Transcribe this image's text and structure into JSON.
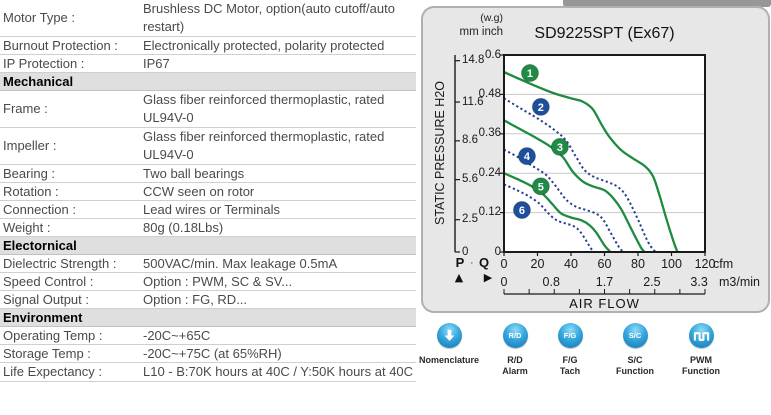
{
  "spec_table": {
    "rows": [
      {
        "type": "row",
        "label": "Motor Type :",
        "value": "Brushless DC Motor, option(auto cutoff/auto restart)",
        "tall": true
      },
      {
        "type": "row",
        "label": "Burnout Protection :",
        "value": "Electronically protected, polarity protected"
      },
      {
        "type": "row",
        "label": "IP Protection :",
        "value": "IP67"
      },
      {
        "type": "header",
        "label": "Mechanical"
      },
      {
        "type": "row",
        "label": "Frame :",
        "value": "Glass fiber reinforced thermoplastic, rated UL94V-0",
        "tall": true
      },
      {
        "type": "row",
        "label": "Impeller :",
        "value": "Glass fiber reinforced thermoplastic, rated UL94V-0",
        "tall": true
      },
      {
        "type": "row",
        "label": "Bearing :",
        "value": "Two ball bearings"
      },
      {
        "type": "row",
        "label": "Rotation :",
        "value": "CCW seen on rotor"
      },
      {
        "type": "row",
        "label": "Connection :",
        "value": "Lead wires or Terminals"
      },
      {
        "type": "row",
        "label": "Weight :",
        "value": "80g (0.18Lbs)"
      },
      {
        "type": "header",
        "label": "Electornical"
      },
      {
        "type": "row",
        "label": "Dielectric Strength :",
        "value": "500VAC/min. Max leakage 0.5mA"
      },
      {
        "type": "row",
        "label": "Speed Control :",
        "value": "Option : PWM, SC & SV..."
      },
      {
        "type": "row",
        "label": "Signal Output :",
        "value": "Option : FG, RD..."
      },
      {
        "type": "header",
        "label": "Environment"
      },
      {
        "type": "row",
        "label": "Operating Temp :",
        "value": "-20C~+65C"
      },
      {
        "type": "row",
        "label": "Storage Temp :",
        "value": "-20C~+75C (at 65%RH)"
      },
      {
        "type": "row",
        "label": "Life Expectancy :",
        "value": "L10 - B:70K hours at 40C / Y:50K hours at 40C",
        "tall": true
      }
    ]
  },
  "chart": {
    "title": "SD9225SPT (Ex67)",
    "pressure_unit_note": "(w.g)",
    "y_scale_header": "mm inch",
    "y_axis_label": "STATIC PRESSURE H2O",
    "x_axis_label": "AIR FLOW",
    "x_unit_primary": "cfm",
    "x_unit_secondary": "m3/min",
    "p_marker": "P",
    "q_marker": "Q",
    "p_arrow": "▲",
    "q_arrow": "▶",
    "pq_separator": "·"
  },
  "chart_data": {
    "type": "line",
    "title": "SD9225SPT (Ex67)",
    "xlabel": "AIR FLOW",
    "ylabel": "STATIC PRESSURE H2O",
    "x_units": [
      "cfm",
      "m3/min"
    ],
    "y_units": [
      "inch H2O",
      "mm H2O"
    ],
    "xlim_cfm": [
      0,
      120
    ],
    "ylim_inch": [
      0,
      0.6
    ],
    "x_ticks_cfm": [
      0,
      20,
      40,
      60,
      80,
      100,
      120
    ],
    "x_ticks_m3min": {
      "values": [
        0,
        0.8,
        1.7,
        2.5,
        3.3
      ],
      "positions_cfm": [
        0,
        28.2,
        60,
        88.3,
        116.5
      ]
    },
    "y_ticks_inch": [
      0,
      0.12,
      0.24,
      0.36,
      0.48,
      0.6
    ],
    "y_ticks_mm": [
      0,
      2.5,
      5.6,
      8.6,
      11.6,
      14.8
    ],
    "grid": "horizontal",
    "legend": "numbered badges on curves",
    "series": [
      {
        "name": "1",
        "color": "green",
        "line": "solid",
        "badge_cfm": 15.5,
        "badge_inch": 0.545,
        "points": [
          [
            0,
            0.548
          ],
          [
            10,
            0.525
          ],
          [
            20,
            0.503
          ],
          [
            30,
            0.483
          ],
          [
            40,
            0.468
          ],
          [
            47,
            0.458
          ],
          [
            53,
            0.435
          ],
          [
            58,
            0.39
          ],
          [
            63,
            0.35
          ],
          [
            70,
            0.31
          ],
          [
            77,
            0.285
          ],
          [
            84,
            0.262
          ],
          [
            89,
            0.23
          ],
          [
            93,
            0.17
          ],
          [
            97,
            0.1
          ],
          [
            101,
            0.035
          ],
          [
            103.5,
            0
          ]
        ]
      },
      {
        "name": "2",
        "color": "blue",
        "line": "dotted",
        "badge_cfm": 22,
        "badge_inch": 0.442,
        "points": [
          [
            0,
            0.468
          ],
          [
            10,
            0.437
          ],
          [
            20,
            0.407
          ],
          [
            30,
            0.372
          ],
          [
            37,
            0.34
          ],
          [
            43,
            0.29
          ],
          [
            48,
            0.25
          ],
          [
            54,
            0.228
          ],
          [
            62,
            0.213
          ],
          [
            68,
            0.198
          ],
          [
            73,
            0.17
          ],
          [
            79,
            0.11
          ],
          [
            86,
            0.03
          ],
          [
            90.5,
            0
          ]
        ]
      },
      {
        "name": "3",
        "color": "green",
        "line": "solid",
        "badge_cfm": 33.4,
        "badge_inch": 0.32,
        "points": [
          [
            0,
            0.401
          ],
          [
            10,
            0.373
          ],
          [
            20,
            0.345
          ],
          [
            28,
            0.32
          ],
          [
            35,
            0.29
          ],
          [
            41,
            0.245
          ],
          [
            47,
            0.215
          ],
          [
            53,
            0.2
          ],
          [
            60,
            0.188
          ],
          [
            65,
            0.165
          ],
          [
            70,
            0.13
          ],
          [
            77,
            0.06
          ],
          [
            82,
            0.012
          ],
          [
            84,
            0
          ]
        ]
      },
      {
        "name": "4",
        "color": "blue",
        "line": "dotted",
        "badge_cfm": 13.7,
        "badge_inch": 0.292,
        "points": [
          [
            0,
            0.312
          ],
          [
            8,
            0.29
          ],
          [
            17,
            0.262
          ],
          [
            25,
            0.235
          ],
          [
            31,
            0.2
          ],
          [
            37,
            0.16
          ],
          [
            43,
            0.138
          ],
          [
            49,
            0.128
          ],
          [
            55,
            0.117
          ],
          [
            59,
            0.1
          ],
          [
            63,
            0.065
          ],
          [
            68,
            0.02
          ],
          [
            71,
            0
          ]
        ]
      },
      {
        "name": "5",
        "color": "green",
        "line": "solid",
        "badge_cfm": 22,
        "badge_inch": 0.2,
        "points": [
          [
            0,
            0.24
          ],
          [
            8,
            0.222
          ],
          [
            16,
            0.202
          ],
          [
            23,
            0.178
          ],
          [
            29,
            0.145
          ],
          [
            34,
            0.118
          ],
          [
            40,
            0.105
          ],
          [
            46,
            0.097
          ],
          [
            51,
            0.082
          ],
          [
            55,
            0.06
          ],
          [
            60,
            0.02
          ],
          [
            63.5,
            0
          ]
        ]
      },
      {
        "name": "6",
        "color": "blue",
        "line": "dotted",
        "badge_cfm": 10.7,
        "badge_inch": 0.128,
        "points": [
          [
            0,
            0.206
          ],
          [
            7,
            0.19
          ],
          [
            14,
            0.172
          ],
          [
            21,
            0.148
          ],
          [
            26,
            0.12
          ],
          [
            31,
            0.098
          ],
          [
            36,
            0.088
          ],
          [
            41,
            0.08
          ],
          [
            45,
            0.065
          ],
          [
            49,
            0.035
          ],
          [
            52,
            0.01
          ],
          [
            54,
            0
          ]
        ]
      }
    ]
  },
  "colors": {
    "curve_green": "#1e8b3e",
    "curve_blue": "#26418f",
    "badge_green": "#1f8b45",
    "badge_blue": "#1d4f9c",
    "grid": "#c9c9c9",
    "plot_border": "#1a1a1a",
    "panel_bg": "#e7e7e7",
    "panel_border": "#b0b0b0",
    "icon_blue": "#2196d4"
  },
  "feature_icons": [
    {
      "name": "nomenclature",
      "glyph": "down-arrow",
      "label_lines": [
        "Nomenclature"
      ]
    },
    {
      "name": "rd-alarm",
      "glyph": "text",
      "glyph_text": "R/D",
      "label_lines": [
        "R/D",
        "Alarm"
      ]
    },
    {
      "name": "fg-tach",
      "glyph": "text",
      "glyph_text": "F/G",
      "label_lines": [
        "F/G",
        "Tach"
      ]
    },
    {
      "name": "sc-function",
      "glyph": "text",
      "glyph_text": "S/C",
      "label_lines": [
        "S/C",
        "Function"
      ]
    },
    {
      "name": "pwm-function",
      "glyph": "pwm-wave",
      "label_lines": [
        "PWM",
        "Function"
      ]
    }
  ]
}
